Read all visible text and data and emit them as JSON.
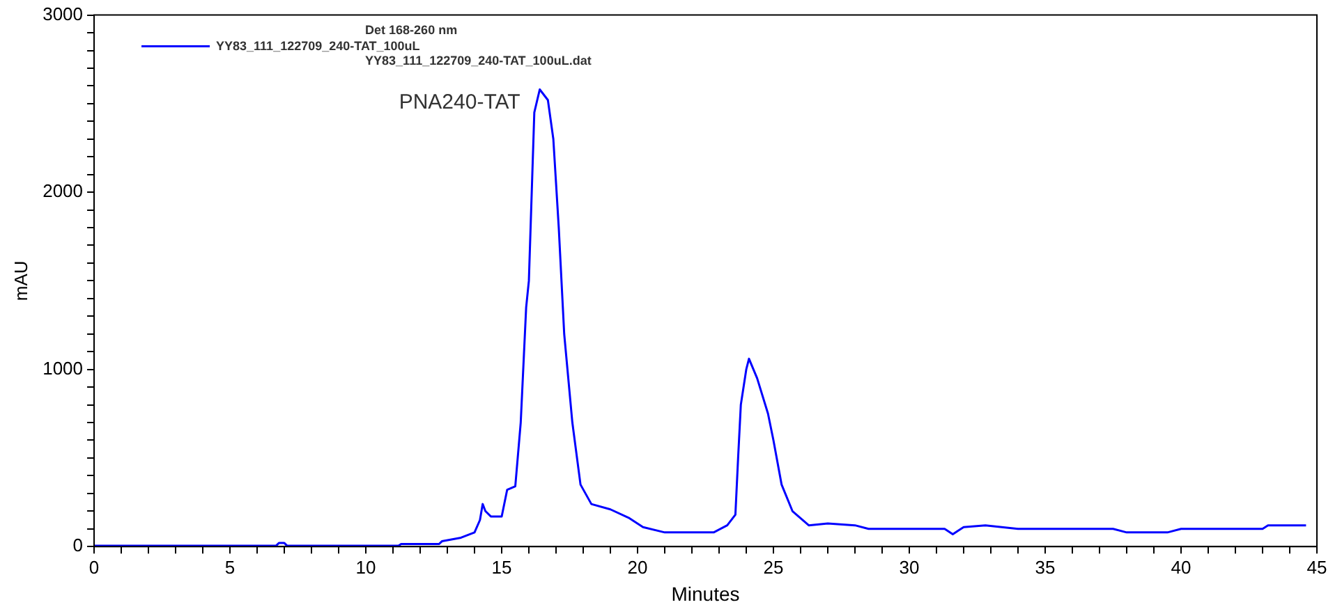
{
  "chart_data": {
    "type": "line",
    "xlabel": "Minutes",
    "ylabel": "mAU",
    "legend_title": "Det 168-260 nm",
    "legend": "top left",
    "grid": false,
    "marker": "none",
    "line_style": "solid",
    "annotations": [
      {
        "text": "PNA240-TAT",
        "x": 16.4,
        "y": 2580
      },
      "YY83_111_122709_240-TAT_100uL.dat"
    ],
    "xlim": [
      0,
      45
    ],
    "ylim": [
      0,
      3000
    ],
    "xticks": [
      0,
      {
        "value": 1,
        "label": null
      },
      {
        "value": 2,
        "label": null
      },
      {
        "value": 3,
        "label": null
      },
      {
        "value": 4,
        "label": null
      },
      5,
      {
        "value": 6,
        "label": null
      },
      {
        "value": 7,
        "label": null
      },
      {
        "value": 8,
        "label": null
      },
      {
        "value": 9,
        "label": null
      },
      10,
      {
        "value": 11,
        "label": null
      },
      {
        "value": 12,
        "label": null
      },
      {
        "value": 13,
        "label": null
      },
      {
        "value": 14,
        "label": null
      },
      15,
      {
        "value": 16,
        "label": null
      },
      {
        "value": 17,
        "label": null
      },
      {
        "value": 18,
        "label": null
      },
      {
        "value": 19,
        "label": null
      },
      20,
      {
        "value": 21,
        "label": null
      },
      {
        "value": 22,
        "label": null
      },
      {
        "value": 23,
        "label": null
      },
      {
        "value": 24,
        "label": null
      },
      25,
      {
        "value": 26,
        "label": null
      },
      {
        "value": 27,
        "label": null
      },
      {
        "value": 28,
        "label": null
      },
      {
        "value": 29,
        "label": null
      },
      30,
      {
        "value": 31,
        "label": null
      },
      {
        "value": 32,
        "label": null
      },
      {
        "value": 33,
        "label": null
      },
      {
        "value": 34,
        "label": null
      },
      35,
      {
        "value": 36,
        "label": null
      },
      {
        "value": 37,
        "label": null
      },
      {
        "value": 38,
        "label": null
      },
      {
        "value": 39,
        "label": null
      },
      40,
      {
        "value": 41,
        "label": null
      },
      {
        "value": 42,
        "label": null
      },
      {
        "value": 43,
        "label": null
      },
      {
        "value": 44,
        "label": null
      },
      45
    ],
    "yticks": [
      0,
      {
        "value": 100,
        "label": null
      },
      {
        "value": 200,
        "label": null
      },
      {
        "value": 300,
        "label": null
      },
      {
        "value": 400,
        "label": null
      },
      {
        "value": 500,
        "label": null
      },
      {
        "value": 600,
        "label": null
      },
      {
        "value": 700,
        "label": null
      },
      {
        "value": 800,
        "label": null
      },
      {
        "value": 900,
        "label": null
      },
      1000,
      {
        "value": 1100,
        "label": null
      },
      {
        "value": 1200,
        "label": null
      },
      {
        "value": 1300,
        "label": null
      },
      {
        "value": 1400,
        "label": null
      },
      {
        "value": 1500,
        "label": null
      },
      {
        "value": 1600,
        "label": null
      },
      {
        "value": 1700,
        "label": null
      },
      {
        "value": 1800,
        "label": null
      },
      {
        "value": 1900,
        "label": null
      },
      2000,
      {
        "value": 2100,
        "label": null
      },
      {
        "value": 2200,
        "label": null
      },
      {
        "value": 2300,
        "label": null
      },
      {
        "value": 2400,
        "label": null
      },
      {
        "value": 2500,
        "label": null
      },
      {
        "value": 2600,
        "label": null
      },
      {
        "value": 2700,
        "label": null
      },
      {
        "value": 2800,
        "label": null
      },
      {
        "value": 2900,
        "label": null
      },
      3000
    ],
    "series": [
      {
        "name": "YY83_111_122709_240-TAT_100uL",
        "color": "#0000ff",
        "x": [
          0,
          6.7,
          6.8,
          7.0,
          7.1,
          11.2,
          11.3,
          12.7,
          12.8,
          13.5,
          14.0,
          14.2,
          14.3,
          14.4,
          14.6,
          15.0,
          15.2,
          15.5,
          15.7,
          15.9,
          16.0,
          16.2,
          16.4,
          16.7,
          16.9,
          17.1,
          17.3,
          17.6,
          17.9,
          18.3,
          19.0,
          19.7,
          20.2,
          21.0,
          22.8,
          23.3,
          23.6,
          23.7,
          23.8,
          24.0,
          24.1,
          24.4,
          24.8,
          25.0,
          25.3,
          25.7,
          26.3,
          27.0,
          28.0,
          28.5,
          31.3,
          31.6,
          32.0,
          32.8,
          34.0,
          37.5,
          38.0,
          39.5,
          40.0,
          43.0,
          43.2,
          44.6
        ],
        "values": [
          5,
          5,
          20,
          20,
          5,
          5,
          15,
          15,
          30,
          50,
          80,
          150,
          240,
          200,
          170,
          170,
          320,
          340,
          700,
          1350,
          1500,
          2450,
          2580,
          2520,
          2300,
          1800,
          1200,
          700,
          350,
          240,
          210,
          160,
          110,
          80,
          80,
          120,
          180,
          500,
          800,
          1000,
          1060,
          950,
          750,
          600,
          350,
          200,
          120,
          130,
          120,
          100,
          100,
          70,
          110,
          120,
          100,
          100,
          80,
          80,
          100,
          100,
          120,
          120
        ]
      }
    ]
  }
}
